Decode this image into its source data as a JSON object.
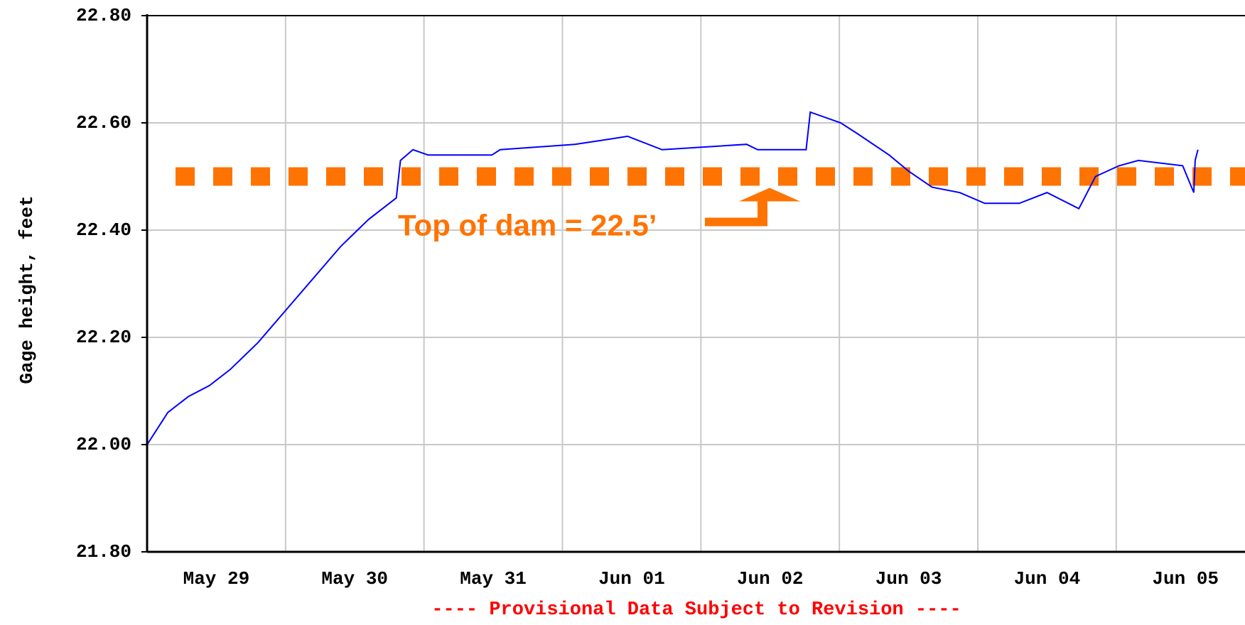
{
  "chart_data": {
    "type": "line",
    "y_label": "Gage height, feet",
    "footer": "---- Provisional Data Subject to Revision ----",
    "xlim": [
      0,
      7.93
    ],
    "xticks": [
      {
        "value": 0.5,
        "label": "May 29"
      },
      {
        "value": 1.5,
        "label": "May 30"
      },
      {
        "value": 2.5,
        "label": "May 31"
      },
      {
        "value": 3.5,
        "label": "Jun 01"
      },
      {
        "value": 4.5,
        "label": "Jun 02"
      },
      {
        "value": 5.5,
        "label": "Jun 03"
      },
      {
        "value": 6.5,
        "label": "Jun 04"
      },
      {
        "value": 7.5,
        "label": "Jun 05"
      }
    ],
    "xgrid": [
      1,
      2,
      3,
      4,
      5,
      6,
      7
    ],
    "ylim": [
      21.8,
      22.8
    ],
    "yticks": [
      {
        "value": 21.8,
        "label": "21.80"
      },
      {
        "value": 22.0,
        "label": "22.00"
      },
      {
        "value": 22.2,
        "label": "22.20"
      },
      {
        "value": 22.4,
        "label": "22.40"
      },
      {
        "value": 22.6,
        "label": "22.60"
      },
      {
        "value": 22.8,
        "label": "22.80"
      }
    ],
    "grid": true,
    "series": [
      {
        "color": "#0000ff",
        "x": [
          0,
          0.05,
          0.15,
          0.3,
          0.45,
          0.6,
          0.8,
          1.0,
          1.2,
          1.4,
          1.6,
          1.8,
          1.83,
          1.92,
          2.03,
          2.49,
          2.55,
          3.09,
          3.35,
          3.47,
          3.72,
          4.33,
          4.41,
          4.76,
          4.79,
          5.01,
          5.13,
          5.36,
          5.5,
          5.67,
          5.87,
          6.05,
          6.3,
          6.5,
          6.73,
          6.79,
          6.85,
          7.02,
          7.16,
          7.48,
          7.56,
          7.57,
          7.59
        ],
        "values": [
          22.0,
          22.02,
          22.06,
          22.09,
          22.11,
          22.14,
          22.19,
          22.25,
          22.31,
          22.37,
          22.42,
          22.46,
          22.53,
          22.55,
          22.54,
          22.54,
          22.55,
          22.56,
          22.57,
          22.575,
          22.55,
          22.56,
          22.55,
          22.55,
          22.62,
          22.6,
          22.58,
          22.54,
          22.51,
          22.48,
          22.47,
          22.45,
          22.45,
          22.47,
          22.44,
          22.47,
          22.5,
          22.52,
          22.53,
          22.52,
          22.47,
          22.53,
          22.55
        ]
      }
    ],
    "reference_line": {
      "value": 22.5,
      "color": "#ff7300",
      "label": "Top of dam = 22.5’"
    }
  }
}
